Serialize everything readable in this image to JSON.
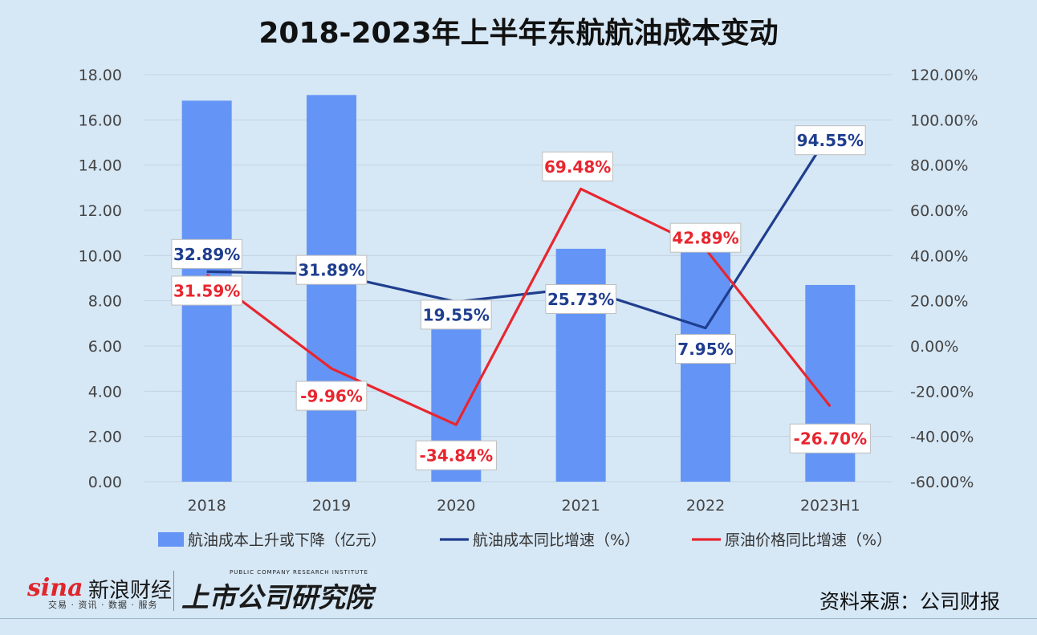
{
  "header": {
    "title": "2018-2023年上半年东航航油成本变动"
  },
  "colors": {
    "bar": "#6495f6",
    "cost_line": "#1f3e8f",
    "oil_line": "#e8262f",
    "grid": "#c3d3e2",
    "axis_text": "#444444"
  },
  "chart_data": {
    "type": "bar+line",
    "title": "2018-2023年上半年东航航油成本变动",
    "categories": [
      "2018",
      "2019",
      "2020",
      "2021",
      "2022",
      "2023H1"
    ],
    "y_left": {
      "ylim": [
        0,
        18
      ],
      "ticks": [
        0,
        2,
        4,
        6,
        8,
        10,
        12,
        14,
        16,
        18
      ],
      "tick_labels": [
        "0.00",
        "2.00",
        "4.00",
        "6.00",
        "8.00",
        "10.00",
        "12.00",
        "14.00",
        "16.00",
        "18.00"
      ]
    },
    "y_right": {
      "ylim": [
        -60,
        120
      ],
      "ticks": [
        -60,
        -40,
        -20,
        0,
        20,
        40,
        60,
        80,
        100,
        120
      ],
      "tick_labels": [
        "-60.00%",
        "-40.00%",
        "-20.00%",
        "0.00%",
        "20.00%",
        "40.00%",
        "60.00%",
        "80.00%",
        "100.00%",
        "120.00%"
      ]
    },
    "series": [
      {
        "name": "航油成本上升或下降（亿元）",
        "kind": "bar",
        "axis": "left",
        "values": [
          16.85,
          17.1,
          6.9,
          10.3,
          11.1,
          8.7
        ]
      },
      {
        "name": "航油成本同比增速（%）",
        "kind": "line",
        "axis": "right",
        "values": [
          32.89,
          31.89,
          19.55,
          25.73,
          7.95,
          94.55
        ],
        "labels": [
          "32.89%",
          "31.89%",
          "19.55%",
          "25.73%",
          "7.95%",
          "94.55%"
        ]
      },
      {
        "name": "原油价格同比增速（%）",
        "kind": "line",
        "axis": "right",
        "values": [
          31.59,
          -9.96,
          -34.84,
          69.48,
          42.89,
          -26.7
        ],
        "labels": [
          "31.59%",
          "-9.96%",
          "-34.84%",
          "69.48%",
          "42.89%",
          "-26.70%"
        ]
      }
    ],
    "legend": {
      "position": "bottom",
      "items": [
        "航油成本上升或下降（亿元）",
        "航油成本同比增速（%）",
        "原油价格同比增速（%）"
      ]
    },
    "grid": true
  },
  "footer": {
    "sina_word": "sina",
    "sina_cn": "新浪财经",
    "sina_sub": "交易 · 资讯 · 数据 · 服务",
    "institute_en": "PUBLIC COMPANY RESEARCH INSTITUTE",
    "institute_cn": "上市公司研究院",
    "source": "资料来源：公司财报"
  }
}
